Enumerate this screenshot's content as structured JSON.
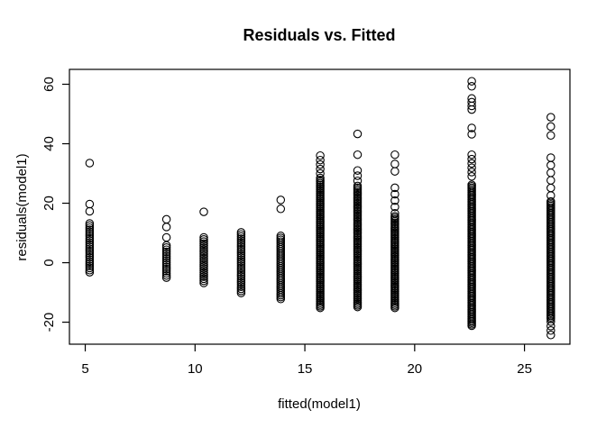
{
  "figure": {
    "title": "Residuals vs. Fitted",
    "xlabel": "fitted(model1)",
    "ylabel": "residuals(model1)"
  },
  "chart_data": {
    "type": "scatter",
    "title": "Residuals vs. Fitted",
    "xlabel": "fitted(model1)",
    "ylabel": "residuals(model1)",
    "xticks": [
      5,
      10,
      15,
      20,
      25
    ],
    "yticks": [
      -20,
      0,
      20,
      40,
      60
    ],
    "xlim": [
      4.28,
      27.07
    ],
    "ylim": [
      -27.4,
      65.0
    ],
    "grid": false,
    "legend": "none",
    "marker": {
      "shape": "open-circle",
      "color": "#000000",
      "radius_px": 4.2
    },
    "colors": {
      "foreground": "#000000",
      "background": "#ffffff"
    },
    "clusters": [
      {
        "x": 5.2,
        "singles": [
          33.5,
          19.7,
          17.3
        ],
        "bands": [
          {
            "from": 13.2,
            "to": -3.2,
            "step": 0.7
          }
        ]
      },
      {
        "x": 8.7,
        "singles": [
          14.6,
          12.0,
          8.5
        ],
        "bands": [
          {
            "from": 5.8,
            "to": -5.0,
            "step": 0.7
          }
        ]
      },
      {
        "x": 10.4,
        "singles": [
          17.1
        ],
        "bands": [
          {
            "from": 8.5,
            "to": -6.8,
            "step": 0.7
          }
        ]
      },
      {
        "x": 12.1,
        "singles": [],
        "bands": [
          {
            "from": 10.2,
            "to": -10.2,
            "step": 0.7
          }
        ]
      },
      {
        "x": 13.9,
        "singles": [
          21.1,
          18.1
        ],
        "bands": [
          {
            "from": 9.0,
            "to": -12.2,
            "step": 0.65
          }
        ]
      },
      {
        "x": 15.7,
        "singles": [],
        "bands": [
          {
            "from": 36.0,
            "to": 28.5,
            "step": 1.5
          },
          {
            "from": 27.8,
            "to": -15.2,
            "step": 0.55
          }
        ]
      },
      {
        "x": 17.4,
        "singles": [
          43.3,
          36.3
        ],
        "bands": [
          {
            "from": 31.0,
            "to": 25.8,
            "step": 1.7
          },
          {
            "from": 25.2,
            "to": -14.9,
            "step": 0.55
          }
        ]
      },
      {
        "x": 19.1,
        "singles": [
          36.3,
          33.2,
          30.7
        ],
        "bands": [
          {
            "from": 25.2,
            "to": 16.6,
            "step": 2.15
          },
          {
            "from": 15.6,
            "to": -15.2,
            "step": 0.55
          }
        ]
      },
      {
        "x": 22.6,
        "singles": [],
        "bands": [
          {
            "from": 61.0,
            "to": 59.3,
            "step": 1.7
          },
          {
            "from": 55.2,
            "to": 51.5,
            "step": 1.25
          },
          {
            "from": 45.3,
            "to": 43.2,
            "step": 2.1
          },
          {
            "from": 36.3,
            "to": 29.0,
            "step": 1.45
          },
          {
            "from": 26.2,
            "to": -21.2,
            "step": 0.5
          }
        ]
      },
      {
        "x": 26.2,
        "singles": [
          48.9,
          45.8,
          42.8
        ],
        "bands": [
          {
            "from": 35.3,
            "to": 22.6,
            "step": 2.5
          },
          {
            "from": 20.6,
            "to": -18.9,
            "step": 0.5
          },
          {
            "from": -19.8,
            "to": -24.3,
            "step": 1.5
          }
        ]
      }
    ]
  }
}
